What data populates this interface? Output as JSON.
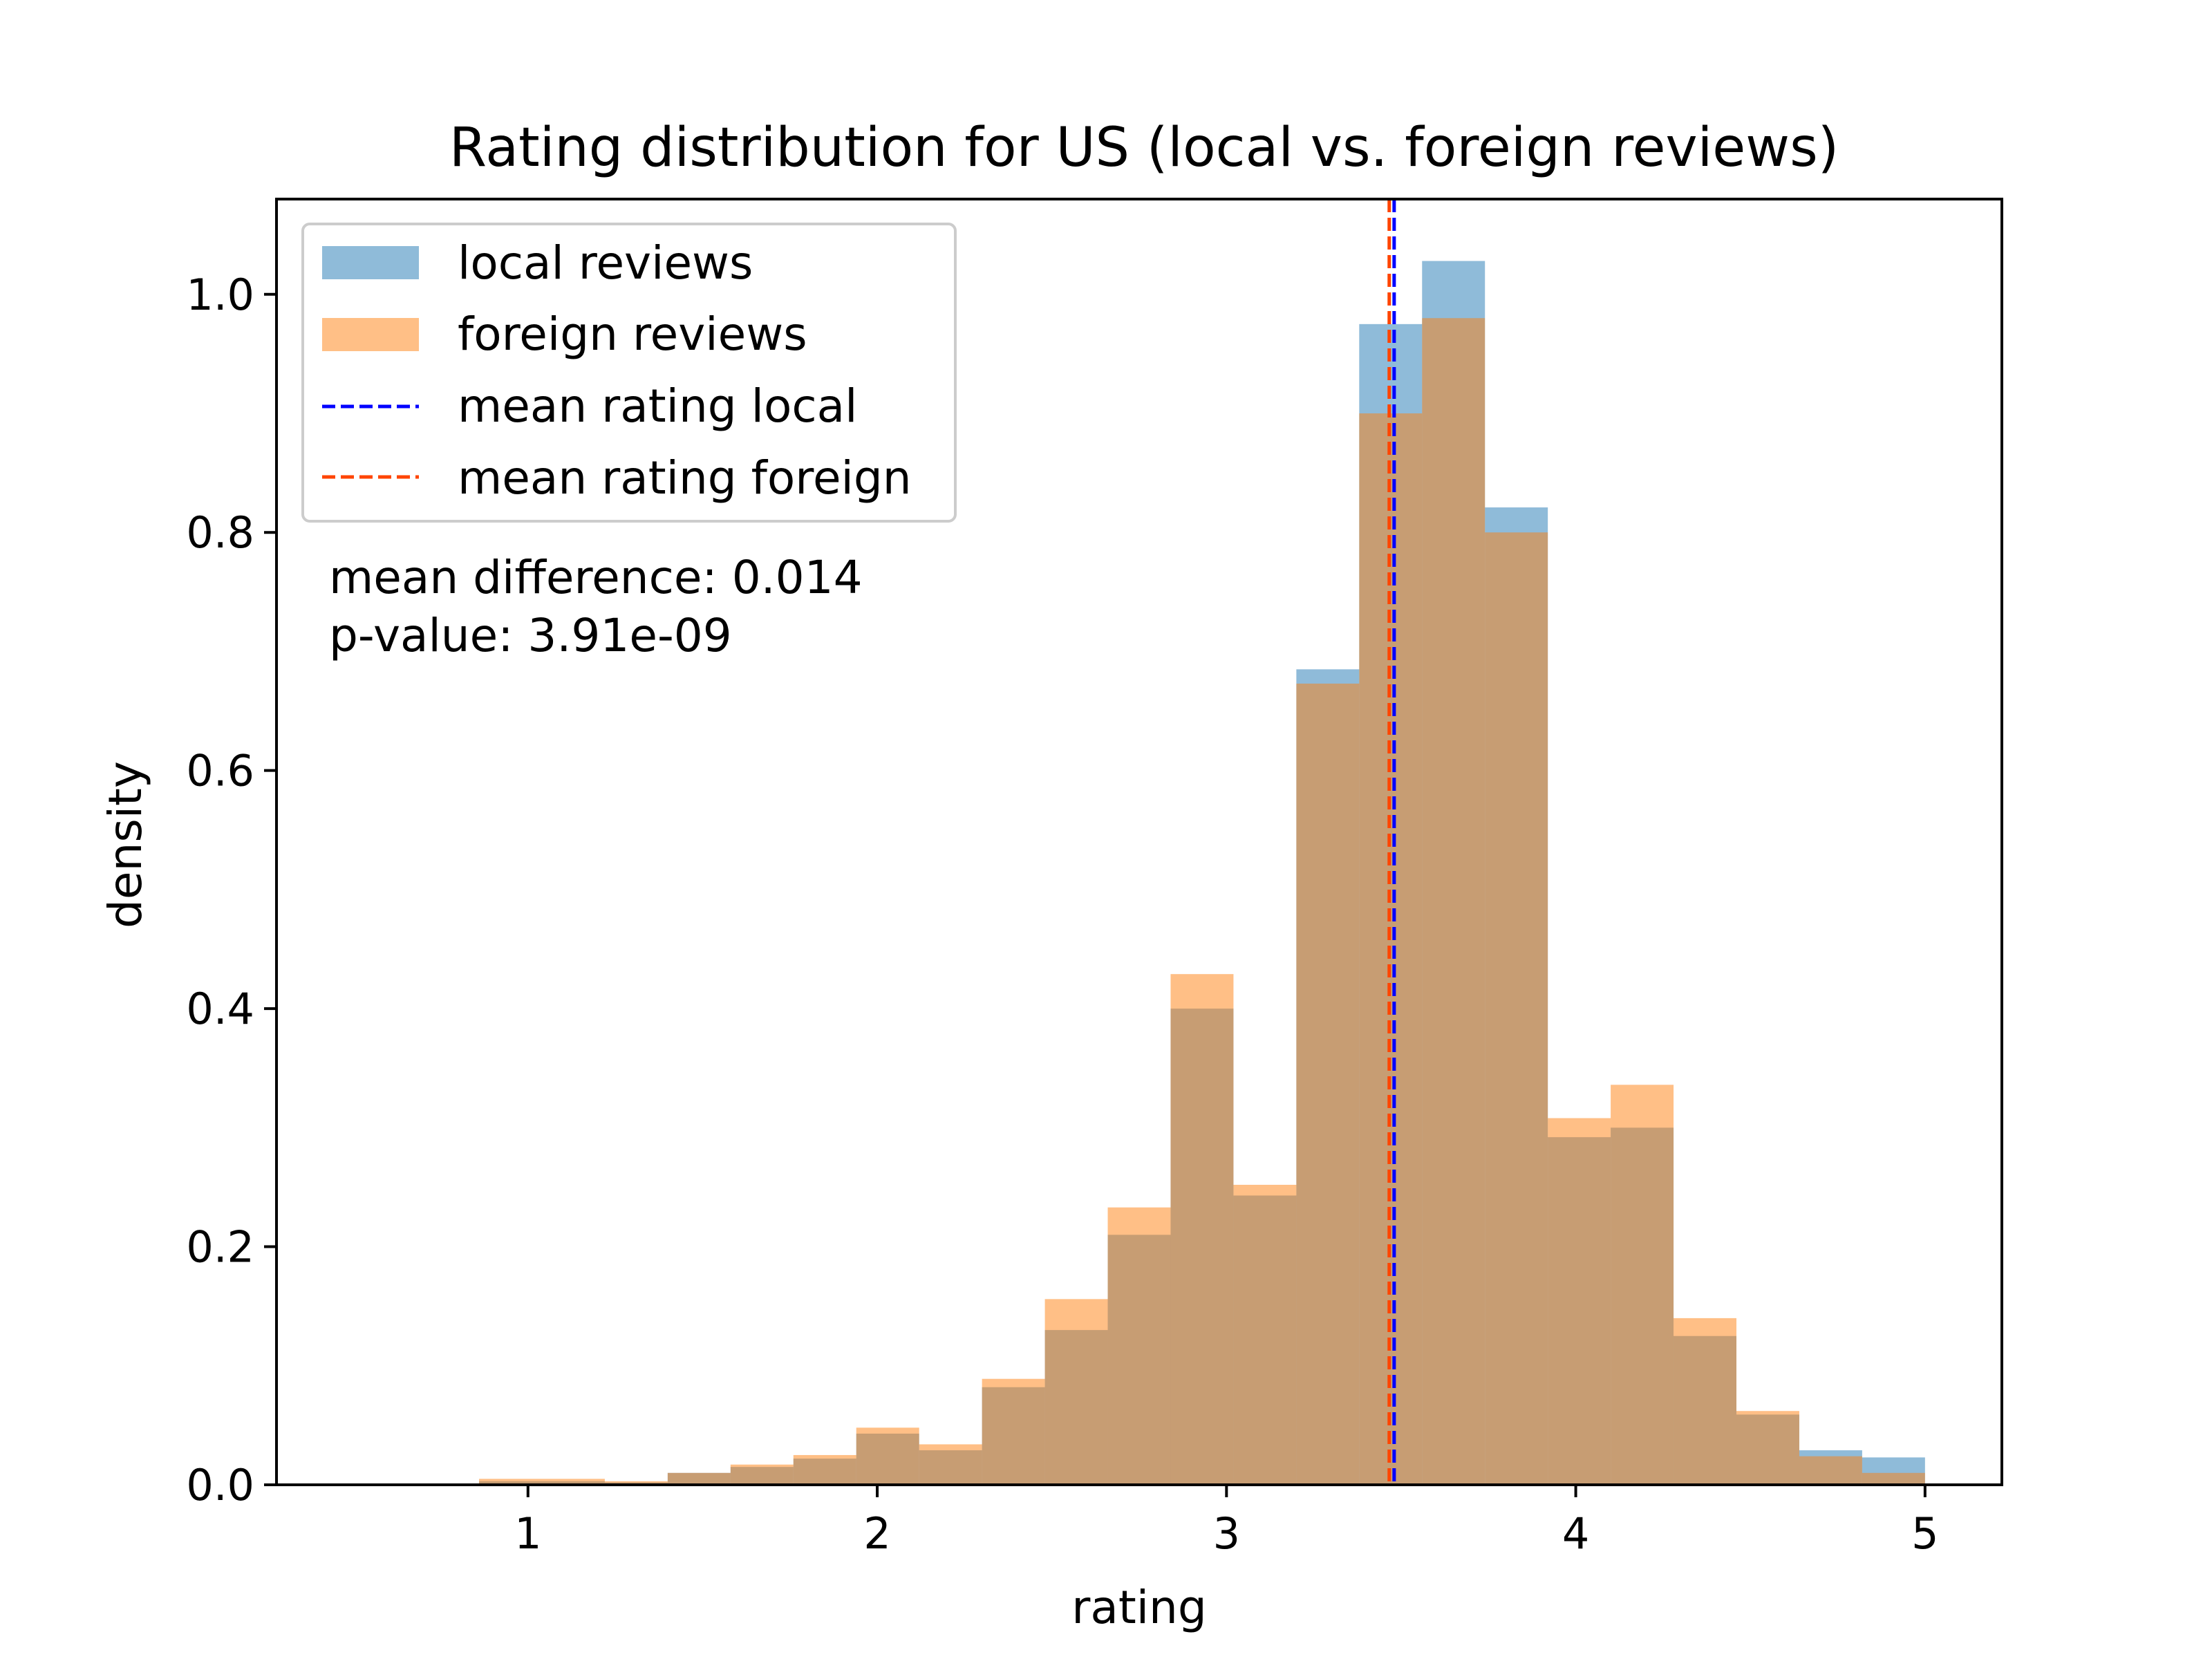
{
  "chart_data": {
    "type": "bar",
    "title": "Rating distribution for US (local vs. foreign reviews)",
    "xlabel": "rating",
    "ylabel": "density",
    "xlim": [
      0.28,
      5.22
    ],
    "ylim": [
      0.0,
      1.08
    ],
    "xticks": [
      1,
      2,
      3,
      4,
      5
    ],
    "xtick_labels": [
      "1",
      "2",
      "3",
      "4",
      "5"
    ],
    "yticks": [
      0.0,
      0.2,
      0.4,
      0.6,
      0.8,
      1.0
    ],
    "ytick_labels": [
      "0.0",
      "0.2",
      "0.4",
      "0.6",
      "0.8",
      "1.0"
    ],
    "grid": false,
    "legend_placement": "upper-left",
    "bin_edges": [
      0.5,
      0.68,
      0.86,
      1.04,
      1.22,
      1.4,
      1.58,
      1.76,
      1.94,
      2.12,
      2.3,
      2.48,
      2.66,
      2.84,
      3.02,
      3.2,
      3.38,
      3.56,
      3.74,
      3.92,
      4.1,
      4.28,
      4.46,
      4.64,
      4.82,
      5.0
    ],
    "series": [
      {
        "name": "local reviews",
        "color": "#1f77b4",
        "opacity": 0.5,
        "values": [
          0.001,
          0.001,
          0.003,
          0.003,
          0.002,
          0.01,
          0.015,
          0.022,
          0.043,
          0.029,
          0.082,
          0.13,
          0.21,
          0.4,
          0.243,
          0.685,
          0.975,
          1.028,
          0.821,
          0.292,
          0.3,
          0.125,
          0.059,
          0.029,
          0.023
        ]
      },
      {
        "name": "foreign reviews",
        "color": "#ff7f0e",
        "opacity": 0.5,
        "values": [
          0.001,
          0.001,
          0.005,
          0.005,
          0.003,
          0.01,
          0.017,
          0.025,
          0.048,
          0.034,
          0.089,
          0.156,
          0.233,
          0.429,
          0.252,
          0.673,
          0.9,
          0.98,
          0.8,
          0.308,
          0.336,
          0.14,
          0.062,
          0.024,
          0.01
        ]
      }
    ],
    "mean_lines": [
      {
        "name": "mean rating local",
        "x": 3.48,
        "color": "#0000ff",
        "style": "dashed"
      },
      {
        "name": "mean rating foreign",
        "x": 3.466,
        "color": "#ff4500",
        "style": "dashed"
      }
    ],
    "annotations": [
      "mean difference: 0.014",
      "p-value: 3.91e-09"
    ]
  }
}
